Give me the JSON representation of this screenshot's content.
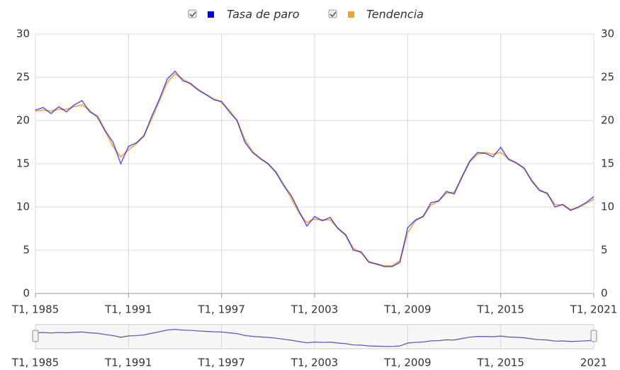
{
  "chart_data": {
    "type": "line",
    "x": [
      1985,
      1985.5,
      1986,
      1986.5,
      1987,
      1987.5,
      1988,
      1988.5,
      1989,
      1989.5,
      1990,
      1990.5,
      1991,
      1991.5,
      1992,
      1992.5,
      1993,
      1993.5,
      1994,
      1994.5,
      1995,
      1995.5,
      1996,
      1996.5,
      1997,
      1997.5,
      1998,
      1998.5,
      1999,
      1999.5,
      2000,
      2000.5,
      2001,
      2001.5,
      2002,
      2002.5,
      2003,
      2003.5,
      2004,
      2004.5,
      2005,
      2005.5,
      2006,
      2006.5,
      2007,
      2007.5,
      2008,
      2008.5,
      2009,
      2009.5,
      2010,
      2010.5,
      2011,
      2011.5,
      2012,
      2012.5,
      2013,
      2013.5,
      2014,
      2014.5,
      2015,
      2015.5,
      2016,
      2016.5,
      2017,
      2017.5,
      2018,
      2018.5,
      2019,
      2019.5,
      2020,
      2020.5,
      2021
    ],
    "series": [
      {
        "name": "Tasa de paro",
        "color": "#0000ee",
        "values": [
          21.2,
          21.5,
          20.8,
          21.6,
          21.0,
          21.8,
          22.3,
          21.0,
          20.5,
          18.8,
          17.5,
          15.0,
          17.0,
          17.4,
          18.2,
          20.5,
          22.5,
          24.8,
          25.7,
          24.6,
          24.3,
          23.5,
          23.0,
          22.4,
          22.2,
          21.0,
          20.0,
          17.5,
          16.3,
          15.6,
          15.0,
          14.0,
          12.5,
          11.3,
          9.5,
          7.8,
          8.9,
          8.4,
          8.8,
          7.5,
          6.8,
          5.0,
          4.8,
          3.6,
          3.4,
          3.1,
          3.1,
          3.6,
          7.6,
          8.5,
          8.9,
          10.5,
          10.7,
          11.8,
          11.5,
          13.5,
          15.3,
          16.3,
          16.2,
          15.8,
          16.9,
          15.5,
          15.1,
          14.5,
          13.0,
          11.9,
          11.6,
          10.0,
          10.3,
          9.6,
          10.0,
          10.5,
          11.2
        ]
      },
      {
        "name": "Tendencia",
        "color": "#f0a030",
        "values": [
          21.1,
          21.2,
          21.1,
          21.3,
          21.3,
          21.6,
          21.8,
          21.2,
          20.3,
          18.8,
          17.0,
          15.8,
          16.6,
          17.3,
          18.3,
          20.2,
          22.3,
          24.4,
          25.4,
          24.8,
          24.2,
          23.6,
          23.0,
          22.5,
          22.1,
          21.2,
          20.0,
          17.8,
          16.4,
          15.6,
          15.0,
          14.1,
          12.6,
          11.0,
          9.3,
          8.2,
          8.6,
          8.5,
          8.5,
          7.6,
          6.7,
          5.2,
          4.7,
          3.7,
          3.4,
          3.2,
          3.2,
          3.8,
          7.0,
          8.4,
          8.9,
          10.2,
          10.7,
          11.6,
          11.7,
          13.4,
          15.2,
          16.1,
          16.3,
          16.1,
          16.3,
          15.6,
          15.1,
          14.5,
          13.1,
          12.0,
          11.5,
          10.3,
          10.2,
          9.7,
          9.9,
          10.4,
          10.9
        ]
      }
    ],
    "xlim": [
      1985,
      2021
    ],
    "xticks": [
      {
        "value": 1985,
        "label": "T1, 1985"
      },
      {
        "value": 1991,
        "label": "T1, 1991"
      },
      {
        "value": 1997,
        "label": "T1, 1997"
      },
      {
        "value": 2003,
        "label": "T1, 2003"
      },
      {
        "value": 2009,
        "label": "T1, 2009"
      },
      {
        "value": 2015,
        "label": "T1, 2015"
      },
      {
        "value": 2021,
        "label": "T1, 2021"
      }
    ],
    "ylim": [
      0,
      30
    ],
    "yticks": [
      0,
      5,
      10,
      15,
      20,
      25,
      30
    ],
    "grid": true,
    "navigator": {
      "xticks": [
        {
          "value": 1985,
          "label": "T1, 1985"
        },
        {
          "value": 1991,
          "label": "T1, 1991"
        },
        {
          "value": 1997,
          "label": "T1, 1997"
        },
        {
          "value": 2003,
          "label": "T1, 2003"
        },
        {
          "value": 2009,
          "label": "T1, 2009"
        },
        {
          "value": 2015,
          "label": "T1, 2015"
        },
        {
          "value": 2021,
          "label": "2021"
        }
      ]
    }
  }
}
